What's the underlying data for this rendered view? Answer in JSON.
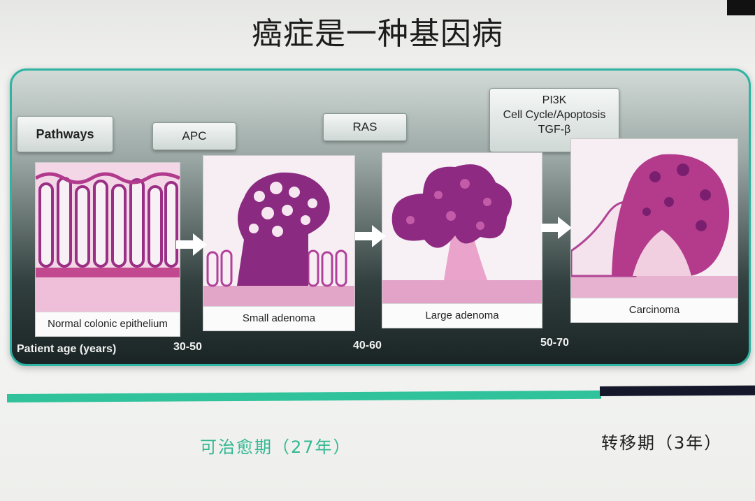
{
  "slide": {
    "title": "癌症是一种基因病"
  },
  "pathways": {
    "header": "Pathways",
    "apc": "APC",
    "ras": "RAS",
    "late": [
      "PI3K",
      "Cell Cycle/Apoptosis",
      "TGF-β"
    ]
  },
  "stages": [
    {
      "label": "Normal colonic epithelium"
    },
    {
      "label": "Small adenoma"
    },
    {
      "label": "Large adenoma"
    },
    {
      "label": "Carcinoma"
    }
  ],
  "age_axis": {
    "label": "Patient age (years)",
    "ranges": [
      "30-50",
      "40-60",
      "50-70"
    ]
  },
  "timeline": {
    "curable_phase": "可治愈期（27年）",
    "metastatic_phase": "转移期（3年）"
  },
  "colors": {
    "teal": "#30c29b",
    "panel_border": "#2db4a3",
    "tissue_pink": "#e27ab4",
    "tissue_purple": "#8a2a80",
    "dark_bar": "#15182a"
  }
}
